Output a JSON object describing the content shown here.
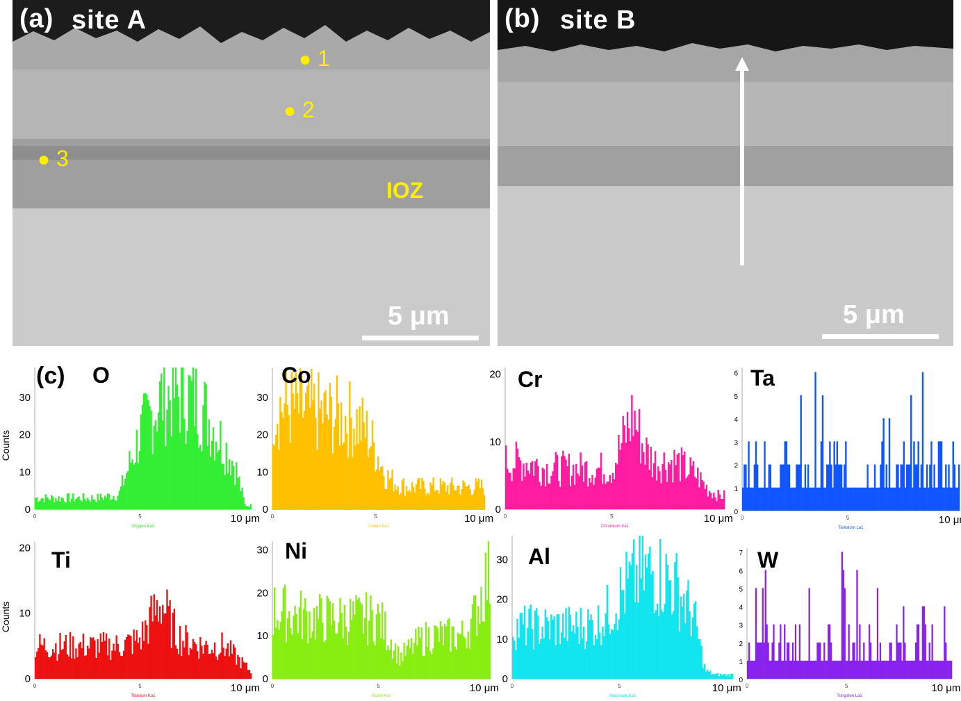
{
  "panel_a": {
    "label": "(a)",
    "title": "site A",
    "scale": "5 μm",
    "points": [
      "1",
      "2",
      "3"
    ],
    "zone": "IOZ"
  },
  "panel_b": {
    "label": "(b)",
    "title": "site B",
    "scale": "5 μm"
  },
  "panel_c": {
    "label": "(c)"
  },
  "chart_data": [
    {
      "type": "bar",
      "element": "O",
      "color": "#33ee33",
      "ylabel": "Counts",
      "yticks": [
        "0",
        "10",
        "20",
        "30"
      ],
      "ylim": [
        0,
        38
      ],
      "xlim": [
        0,
        10.3
      ],
      "xtick_mid": "5",
      "xtick_end": "10 μm",
      "caption": "Oxygen Ka1",
      "x": [
        0,
        1,
        2,
        3,
        4,
        4.5,
        5,
        5.5,
        6,
        6.5,
        7,
        7.5,
        8,
        8.5,
        9,
        9.5,
        10,
        10.3
      ],
      "y": [
        3,
        3,
        3,
        3,
        4,
        12,
        20,
        25,
        30,
        31,
        31,
        30,
        27,
        22,
        17,
        12,
        1,
        1
      ]
    },
    {
      "type": "bar",
      "element": "Co",
      "color": "#ffc000",
      "ylabel": "",
      "yticks": [
        "0",
        "10",
        "20",
        "30"
      ],
      "ylim": [
        0,
        38
      ],
      "xlim": [
        0,
        10.3
      ],
      "xtick_mid": "",
      "xtick_end": "10 μm",
      "caption": "Cobalt Ka1",
      "x": [
        0,
        1,
        2,
        3,
        4,
        4.5,
        5,
        5.5,
        6,
        6.5,
        7,
        7.5,
        8,
        8.5,
        9,
        9.5,
        10,
        10.3
      ],
      "y": [
        28,
        27,
        26,
        25,
        24,
        21,
        16,
        9,
        7,
        6,
        6,
        6,
        6,
        6,
        6,
        6,
        6,
        6
      ]
    },
    {
      "type": "bar",
      "element": "Cr",
      "color": "#ff1ca0",
      "ylabel": "",
      "yticks": [
        "0",
        "10",
        "20"
      ],
      "ylim": [
        0,
        21
      ],
      "xlim": [
        0,
        10.3
      ],
      "xtick_mid": "",
      "xtick_end": "10 μm",
      "caption": "Chromium Ka1",
      "x": [
        0,
        1,
        2,
        3,
        4,
        5,
        5.5,
        6,
        6.5,
        7,
        7.5,
        8,
        8.5,
        9,
        9.5,
        10,
        10.3
      ],
      "y": [
        7,
        7,
        6,
        6,
        6,
        6,
        10,
        14,
        9,
        7,
        7,
        7,
        6,
        5,
        3,
        2,
        2
      ]
    },
    {
      "type": "bar",
      "element": "Ta",
      "color": "#1155ff",
      "ylabel": "",
      "yticks": [
        "0",
        "1",
        "2",
        "3",
        "4",
        "5",
        "6"
      ],
      "ylim": [
        0,
        6.2
      ],
      "xlim": [
        0,
        10.3
      ],
      "xtick_mid": "",
      "xtick_end": "10 μm",
      "caption": "Tantalum La1",
      "x": [
        0,
        1,
        2,
        3,
        4,
        5,
        6,
        7,
        8,
        9,
        10,
        10.3
      ],
      "y": [
        1,
        1,
        1,
        1,
        1,
        1,
        1,
        1,
        1,
        1,
        1,
        1
      ]
    },
    {
      "type": "bar",
      "element": "Ti",
      "color": "#ee1111",
      "ylabel": "Counts",
      "yticks": [
        "0",
        "10",
        "20"
      ],
      "ylim": [
        0,
        21
      ],
      "xlim": [
        0,
        10.3
      ],
      "xtick_mid": "",
      "xtick_end": "10 μm",
      "caption": "Titanium Ka1",
      "x": [
        0,
        1,
        2,
        3,
        4,
        5,
        5.5,
        6,
        6.5,
        7,
        8,
        9,
        10,
        10.3
      ],
      "y": [
        5,
        5,
        5,
        5,
        5,
        6,
        9,
        12,
        8,
        6,
        5,
        5,
        2,
        1
      ]
    },
    {
      "type": "bar",
      "element": "Ni",
      "color": "#88ee11",
      "ylabel": "",
      "yticks": [
        "0",
        "10",
        "20",
        "30"
      ],
      "ylim": [
        0,
        32
      ],
      "xlim": [
        0,
        10.3
      ],
      "xtick_mid": "",
      "xtick_end": "10 μm",
      "caption": "Nickel Ka1",
      "x": [
        0,
        1,
        2,
        3,
        4,
        5,
        5.5,
        6,
        6.5,
        7,
        7.5,
        8,
        8.5,
        9,
        9.5,
        10,
        10.3
      ],
      "y": [
        16,
        15,
        14,
        14,
        14,
        14,
        10,
        5,
        7,
        9,
        10,
        10,
        10,
        10,
        14,
        22,
        26
      ]
    },
    {
      "type": "bar",
      "element": "Al",
      "color": "#11e5ee",
      "ylabel": "",
      "yticks": [
        "0",
        "10",
        "20",
        "30"
      ],
      "ylim": [
        0,
        36
      ],
      "xlim": [
        0,
        10.3
      ],
      "xtick_mid": "",
      "xtick_end": "10 μm",
      "caption": "Aluminum Ka1",
      "x": [
        0,
        1,
        2,
        3,
        4,
        4.5,
        5,
        5.5,
        6,
        6.5,
        7,
        7.5,
        8,
        8.5,
        9,
        9.5,
        10,
        10.3
      ],
      "y": [
        13,
        13,
        13,
        13,
        14,
        17,
        21,
        24,
        26,
        27,
        26,
        24,
        20,
        15,
        2,
        1,
        1,
        1
      ]
    },
    {
      "type": "bar",
      "element": "W",
      "color": "#8822ee",
      "ylabel": "",
      "yticks": [
        "0",
        "1",
        "2",
        "3",
        "4",
        "5",
        "6",
        "7"
      ],
      "ylim": [
        0,
        7.2
      ],
      "xlim": [
        0,
        10.3
      ],
      "xtick_mid": "",
      "xtick_end": "10 μm",
      "caption": "Tungsten La1",
      "x": [
        0,
        1,
        2,
        3,
        4,
        5,
        6,
        7,
        8,
        9,
        10,
        10.3
      ],
      "y": [
        1,
        1,
        1,
        1,
        1,
        1,
        1,
        1,
        1,
        1,
        1,
        1
      ]
    }
  ]
}
